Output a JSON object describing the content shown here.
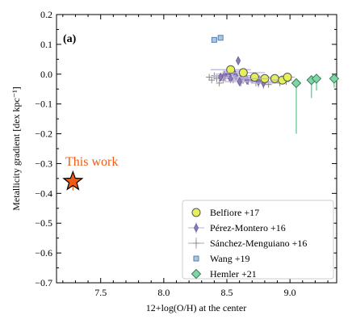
{
  "chart_data": {
    "type": "scatter",
    "panel_label": "(a)",
    "xlabel": "12+log(O/H) at the center",
    "ylabel": "Metallicity gradient [dex kpc⁻¹]",
    "xlim": [
      7.15,
      9.37
    ],
    "ylim": [
      -0.7,
      0.2
    ],
    "xticks": [
      7.5,
      8.0,
      8.5,
      9.0
    ],
    "xtick_labels": [
      "7.5",
      "8.0",
      "8.5",
      "9.0"
    ],
    "yticks": [
      0.2,
      0.1,
      0.0,
      -0.1,
      -0.2,
      -0.3,
      -0.4,
      -0.5,
      -0.6,
      -0.7
    ],
    "ytick_labels": [
      "0.2",
      "0.1",
      "0.0",
      "−0.1",
      "−0.2",
      "−0.3",
      "−0.4",
      "−0.5",
      "−0.6",
      "−0.7"
    ],
    "grid": false,
    "legend_position": "lower-right",
    "annotation": {
      "text": "This work",
      "color": "#f05a14"
    },
    "series": [
      {
        "name": "Belfiore +17",
        "marker": "circle",
        "color": "#e5f05a",
        "edge": "#555555",
        "points": [
          {
            "x": 8.53,
            "y": 0.015,
            "xerr": 0.16,
            "yerr": 0.01
          },
          {
            "x": 8.63,
            "y": 0.005,
            "xerr": 0.17,
            "yerr": 0.01
          },
          {
            "x": 8.72,
            "y": -0.01,
            "xerr": 0.18,
            "yerr": 0.01
          },
          {
            "x": 8.8,
            "y": -0.015,
            "xerr": 0.16,
            "yerr": 0.012
          },
          {
            "x": 8.88,
            "y": -0.015,
            "xerr": 0.12,
            "yerr": 0.012
          },
          {
            "x": 8.94,
            "y": -0.02,
            "xerr": 0.08,
            "yerr": 0.012
          },
          {
            "x": 8.98,
            "y": -0.01,
            "xerr": 0.06,
            "yerr": 0.01
          }
        ]
      },
      {
        "name": "Pérez-Montero +16",
        "marker": "thin-diamond",
        "color": "#8e7cb8",
        "edge": "#6a5a9a",
        "points": [
          {
            "x": 8.59,
            "y": 0.045,
            "xerr": 0.0,
            "yerr": 0.0
          },
          {
            "x": 8.55,
            "y": 0.01,
            "xerr": 0.08,
            "yerr": 0.01
          },
          {
            "x": 8.51,
            "y": 0.0,
            "xerr": 0.1,
            "yerr": 0.015
          },
          {
            "x": 8.57,
            "y": -0.005,
            "xerr": 0.12,
            "yerr": 0.01
          },
          {
            "x": 8.62,
            "y": -0.01,
            "xerr": 0.1,
            "yerr": 0.02
          },
          {
            "x": 8.48,
            "y": -0.005,
            "xerr": 0.09,
            "yerr": 0.01
          },
          {
            "x": 8.66,
            "y": -0.02,
            "xerr": 0.15,
            "yerr": 0.015
          },
          {
            "x": 8.7,
            "y": -0.015,
            "xerr": 0.12,
            "yerr": 0.01
          },
          {
            "x": 8.53,
            "y": -0.015,
            "xerr": 0.11,
            "yerr": 0.01
          },
          {
            "x": 8.75,
            "y": -0.025,
            "xerr": 0.13,
            "yerr": 0.02
          },
          {
            "x": 8.64,
            "y": 0.005,
            "xerr": 0.09,
            "yerr": 0.01
          },
          {
            "x": 8.45,
            "y": -0.01,
            "xerr": 0.07,
            "yerr": 0.01
          },
          {
            "x": 8.79,
            "y": -0.03,
            "xerr": 0.1,
            "yerr": 0.02
          },
          {
            "x": 8.6,
            "y": -0.025,
            "xerr": 0.12,
            "yerr": 0.015
          }
        ]
      },
      {
        "name": "Sánchez-Menguiano +16",
        "marker": "plus",
        "color": "#888888",
        "points": [
          {
            "x": 8.36,
            "y": -0.01
          },
          {
            "x": 8.4,
            "y": -0.005
          },
          {
            "x": 8.42,
            "y": -0.015
          },
          {
            "x": 8.45,
            "y": -0.01
          },
          {
            "x": 8.47,
            "y": -0.02
          },
          {
            "x": 8.49,
            "y": -0.005
          },
          {
            "x": 8.52,
            "y": -0.015
          },
          {
            "x": 8.55,
            "y": -0.02
          },
          {
            "x": 8.58,
            "y": -0.01
          },
          {
            "x": 8.61,
            "y": -0.03
          },
          {
            "x": 8.64,
            "y": -0.015
          },
          {
            "x": 8.67,
            "y": -0.025
          },
          {
            "x": 8.7,
            "y": -0.02
          },
          {
            "x": 8.73,
            "y": -0.03
          },
          {
            "x": 8.76,
            "y": -0.015
          },
          {
            "x": 8.79,
            "y": -0.025
          },
          {
            "x": 8.83,
            "y": -0.035
          },
          {
            "x": 8.87,
            "y": -0.02
          },
          {
            "x": 8.92,
            "y": -0.03
          },
          {
            "x": 8.97,
            "y": -0.025
          },
          {
            "x": 8.44,
            "y": -0.03
          },
          {
            "x": 8.38,
            "y": -0.02
          }
        ]
      },
      {
        "name": "Wang +19",
        "marker": "square",
        "color": "#a8c8e8",
        "edge": "#5a7ea8",
        "points": [
          {
            "x": 8.4,
            "y": 0.115
          },
          {
            "x": 8.45,
            "y": 0.122
          }
        ]
      },
      {
        "name": "Hemler +21",
        "marker": "diamond",
        "color": "#7fd6a4",
        "edge": "#3a7a5a",
        "points": [
          {
            "x": 9.05,
            "y": -0.03,
            "yerr_lo": 0.17,
            "yerr_hi": 0.0
          },
          {
            "x": 9.17,
            "y": -0.02,
            "yerr_lo": 0.06,
            "yerr_hi": 0.0
          },
          {
            "x": 9.21,
            "y": -0.015,
            "yerr_lo": 0.04,
            "yerr_hi": 0.0
          },
          {
            "x": 9.35,
            "y": -0.015,
            "yerr_lo": 0.03,
            "yerr_hi": 0.0
          }
        ]
      },
      {
        "name": "This work",
        "in_legend": false,
        "marker": "star",
        "color": "#f05a14",
        "edge": "#000000",
        "points": [
          {
            "x": 7.28,
            "y": -0.36,
            "yerr": 0.03
          }
        ]
      }
    ]
  }
}
